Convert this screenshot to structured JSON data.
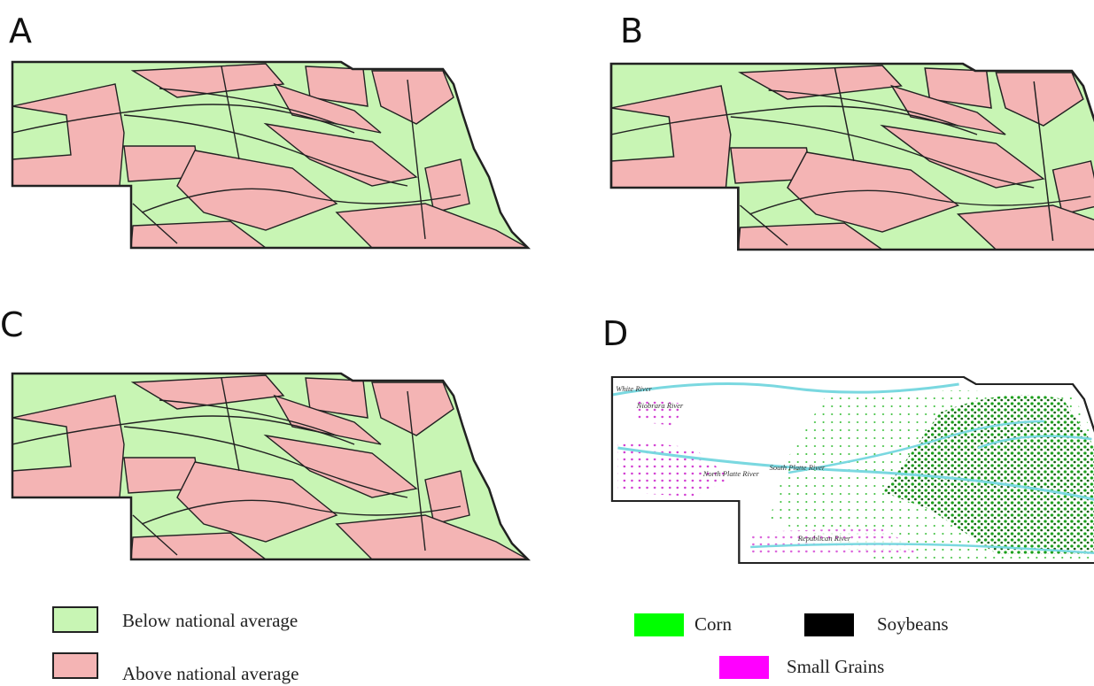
{
  "panels": [
    {
      "label": "A"
    },
    {
      "label": "B"
    },
    {
      "label": "C"
    },
    {
      "label": "D"
    }
  ],
  "legend": {
    "below": "Below national average",
    "above": "Above national average"
  },
  "crop_legend": {
    "corn": "Corn",
    "soybeans": "Soybeans",
    "small_grains": "Small Grains"
  },
  "river_labels": [
    "White River",
    "Niobrara River",
    "North Platte River",
    "South Platte River",
    "Republican River"
  ]
}
